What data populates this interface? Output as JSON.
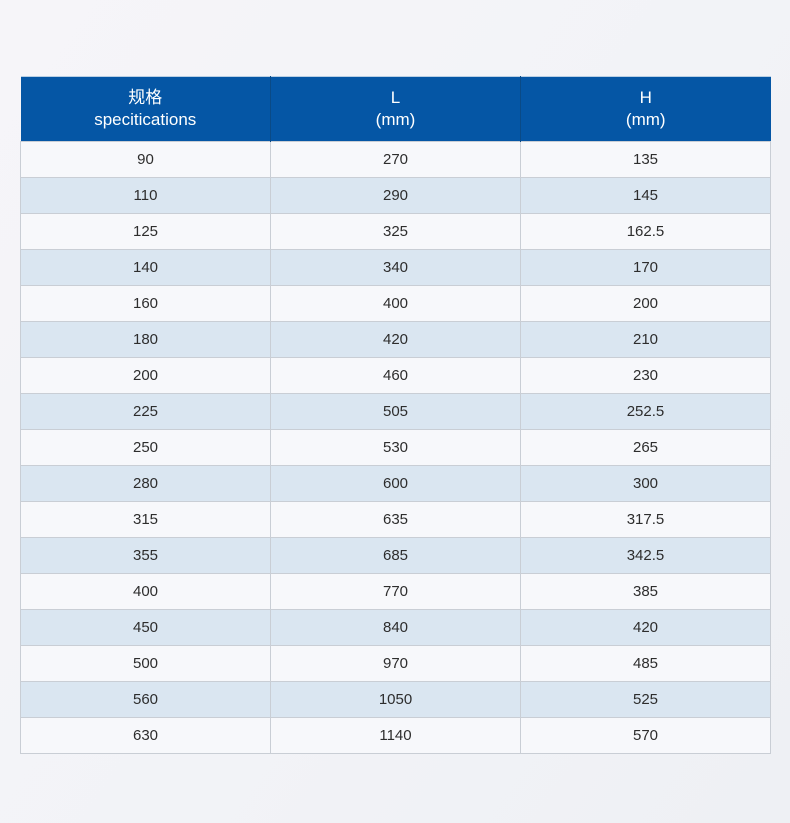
{
  "table": {
    "header": [
      {
        "line1": "规格",
        "line2": "specitications"
      },
      {
        "line1": "L",
        "line2": "(mm)"
      },
      {
        "line1": "H",
        "line2": "(mm)"
      }
    ],
    "rows": [
      [
        "90",
        "270",
        "135"
      ],
      [
        "110",
        "290",
        "145"
      ],
      [
        "125",
        "325",
        "162.5"
      ],
      [
        "140",
        "340",
        "170"
      ],
      [
        "160",
        "400",
        "200"
      ],
      [
        "180",
        "420",
        "210"
      ],
      [
        "200",
        "460",
        "230"
      ],
      [
        "225",
        "505",
        "252.5"
      ],
      [
        "250",
        "530",
        "265"
      ],
      [
        "280",
        "600",
        "300"
      ],
      [
        "315",
        "635",
        "317.5"
      ],
      [
        "355",
        "685",
        "342.5"
      ],
      [
        "400",
        "770",
        "385"
      ],
      [
        "450",
        "840",
        "420"
      ],
      [
        "500",
        "970",
        "485"
      ],
      [
        "560",
        "1050",
        "525"
      ],
      [
        "630",
        "1140",
        "570"
      ]
    ],
    "colors": {
      "header_bg": "#0556a5",
      "header_divider": "#0a4a86",
      "header_text": "#ffffff",
      "row_light_bg": "#f7f8fb",
      "row_stripe_bg": "#dae6f1",
      "grid_line": "#c9ced5",
      "body_text": "#2d2d2d",
      "page_bg_top": "#f6f5f9",
      "page_bg_bottom": "#eef0f4"
    }
  }
}
